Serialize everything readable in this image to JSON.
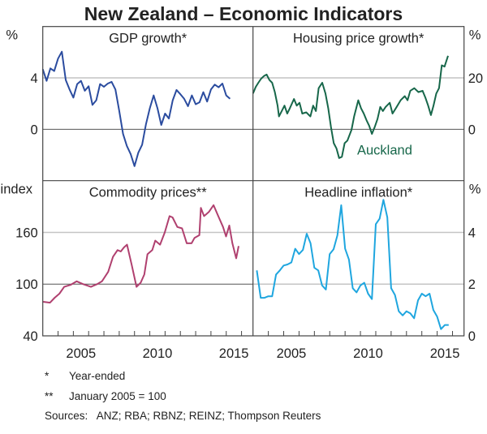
{
  "title": "New Zealand – Economic Indicators",
  "footnotes": [
    {
      "mark": "*",
      "text": "Year-ended"
    },
    {
      "mark": "**",
      "text": "January 2005 = 100"
    }
  ],
  "sources": "Sources:   ANZ; RBA; RBNZ; REINZ; Thompson Reuters",
  "x_ticks": [
    "2005",
    "2010",
    "2015"
  ],
  "chart_data": [
    {
      "type": "line",
      "title": "GDP growth*",
      "unit": "%",
      "unit_side": "left",
      "ylim": [
        -4,
        8
      ],
      "y_ticks": [
        "0",
        "4"
      ],
      "xlim": [
        2003,
        2016.75
      ],
      "grid": true,
      "series": [
        {
          "color": "#2b4c9f",
          "points": [
            [
              2003.0,
              4.68
            ],
            [
              2003.25,
              3.77
            ],
            [
              2003.5,
              4.74
            ],
            [
              2003.75,
              4.53
            ],
            [
              2004.0,
              5.5
            ],
            [
              2004.25,
              6.04
            ],
            [
              2004.5,
              3.84
            ],
            [
              2004.75,
              3.1
            ],
            [
              2005.0,
              2.47
            ],
            [
              2005.25,
              3.52
            ],
            [
              2005.5,
              3.77
            ],
            [
              2005.75,
              3.0
            ],
            [
              2006.0,
              3.35
            ],
            [
              2006.25,
              1.9
            ],
            [
              2006.5,
              2.26
            ],
            [
              2006.75,
              3.52
            ],
            [
              2007.0,
              3.31
            ],
            [
              2007.25,
              3.56
            ],
            [
              2007.5,
              3.69
            ],
            [
              2007.75,
              3.1
            ],
            [
              2008.0,
              1.43
            ],
            [
              2008.25,
              -0.36
            ],
            [
              2008.5,
              -1.3
            ],
            [
              2008.75,
              -1.93
            ],
            [
              2009.0,
              -2.87
            ],
            [
              2009.25,
              -1.82
            ],
            [
              2009.5,
              -1.2
            ],
            [
              2009.75,
              0.38
            ],
            [
              2010.0,
              1.64
            ],
            [
              2010.25,
              2.64
            ],
            [
              2010.5,
              1.64
            ],
            [
              2010.75,
              0.34
            ],
            [
              2011.0,
              1.22
            ],
            [
              2011.25,
              0.84
            ],
            [
              2011.5,
              2.26
            ],
            [
              2011.75,
              3.06
            ],
            [
              2012.0,
              2.73
            ],
            [
              2012.25,
              2.37
            ],
            [
              2012.5,
              1.8
            ],
            [
              2012.75,
              2.64
            ],
            [
              2013.0,
              1.95
            ],
            [
              2013.25,
              2.1
            ],
            [
              2013.5,
              2.89
            ],
            [
              2013.75,
              2.16
            ],
            [
              2014.0,
              3.1
            ],
            [
              2014.25,
              3.48
            ],
            [
              2014.5,
              3.27
            ],
            [
              2014.75,
              3.56
            ],
            [
              2015.0,
              2.64
            ],
            [
              2015.25,
              2.37
            ]
          ]
        }
      ]
    },
    {
      "type": "line",
      "title": "Housing price growth*",
      "unit": "%",
      "unit_side": "right",
      "ylim": [
        -20,
        40
      ],
      "y_ticks": [
        "0",
        "20"
      ],
      "xlim": [
        2003,
        2016.75
      ],
      "grid": true,
      "series": [
        {
          "name": "Auckland",
          "color": "#17674a",
          "points": [
            [
              2003.0,
              13.9
            ],
            [
              2003.18,
              16.5
            ],
            [
              2003.35,
              18.1
            ],
            [
              2003.53,
              19.7
            ],
            [
              2003.71,
              20.7
            ],
            [
              2003.89,
              21.3
            ],
            [
              2004.07,
              19.2
            ],
            [
              2004.25,
              18.1
            ],
            [
              2004.42,
              14.5
            ],
            [
              2004.6,
              9.2
            ],
            [
              2004.69,
              5.0
            ],
            [
              2004.87,
              7.1
            ],
            [
              2005.05,
              9.2
            ],
            [
              2005.23,
              6.1
            ],
            [
              2005.4,
              8.2
            ],
            [
              2005.67,
              11.8
            ],
            [
              2005.85,
              9.2
            ],
            [
              2006.03,
              10.3
            ],
            [
              2006.21,
              6.1
            ],
            [
              2006.47,
              6.6
            ],
            [
              2006.74,
              5.0
            ],
            [
              2006.92,
              9.2
            ],
            [
              2007.1,
              7.1
            ],
            [
              2007.28,
              16.0
            ],
            [
              2007.51,
              18.1
            ],
            [
              2007.72,
              13.9
            ],
            [
              2007.9,
              8.2
            ],
            [
              2008.08,
              0.8
            ],
            [
              2008.26,
              -5.4
            ],
            [
              2008.44,
              -7.5
            ],
            [
              2008.61,
              -11.2
            ],
            [
              2008.79,
              -10.7
            ],
            [
              2008.97,
              -5.4
            ],
            [
              2009.15,
              -4.4
            ],
            [
              2009.42,
              -0.2
            ],
            [
              2009.59,
              5.0
            ],
            [
              2009.86,
              11.3
            ],
            [
              2010.04,
              8.2
            ],
            [
              2010.22,
              6.1
            ],
            [
              2010.4,
              3.5
            ],
            [
              2010.57,
              1.4
            ],
            [
              2010.75,
              -1.8
            ],
            [
              2010.93,
              0.8
            ],
            [
              2011.11,
              4.0
            ],
            [
              2011.29,
              8.7
            ],
            [
              2011.46,
              7.1
            ],
            [
              2011.64,
              8.7
            ],
            [
              2011.91,
              10.3
            ],
            [
              2012.09,
              6.1
            ],
            [
              2012.36,
              8.7
            ],
            [
              2012.62,
              11.3
            ],
            [
              2012.89,
              12.9
            ],
            [
              2013.07,
              11.3
            ],
            [
              2013.25,
              15.0
            ],
            [
              2013.51,
              16.0
            ],
            [
              2013.78,
              14.5
            ],
            [
              2014.05,
              15.0
            ],
            [
              2014.23,
              12.4
            ],
            [
              2014.41,
              9.2
            ],
            [
              2014.59,
              5.5
            ],
            [
              2014.76,
              9.2
            ],
            [
              2014.94,
              13.9
            ],
            [
              2015.12,
              16.0
            ],
            [
              2015.3,
              24.9
            ],
            [
              2015.48,
              24.4
            ],
            [
              2015.71,
              28.6
            ]
          ]
        }
      ]
    },
    {
      "type": "line",
      "title": "Commodity prices**",
      "unit": "index",
      "unit_side": "left",
      "ylim": [
        40,
        220
      ],
      "y_ticks": [
        "40",
        "100",
        "160"
      ],
      "xlim": [
        2003,
        2016.75
      ],
      "grid": true,
      "series": [
        {
          "color": "#b0406f",
          "points": [
            [
              2003.02,
              79.5
            ],
            [
              2003.47,
              78.5
            ],
            [
              2003.78,
              84.2
            ],
            [
              2004.09,
              88.9
            ],
            [
              2004.4,
              96.8
            ],
            [
              2004.81,
              99.1
            ],
            [
              2005.22,
              103.2
            ],
            [
              2005.63,
              100
            ],
            [
              2006.15,
              96.8
            ],
            [
              2006.56,
              100
            ],
            [
              2006.87,
              103.2
            ],
            [
              2007.28,
              114.2
            ],
            [
              2007.59,
              131.6
            ],
            [
              2007.89,
              139.5
            ],
            [
              2008.1,
              137.9
            ],
            [
              2008.31,
              142.6
            ],
            [
              2008.51,
              145.8
            ],
            [
              2008.82,
              122.1
            ],
            [
              2009.13,
              96.8
            ],
            [
              2009.4,
              101.6
            ],
            [
              2009.64,
              111.1
            ],
            [
              2009.85,
              134.7
            ],
            [
              2010.16,
              139.5
            ],
            [
              2010.36,
              150.5
            ],
            [
              2010.67,
              145.8
            ],
            [
              2010.98,
              160
            ],
            [
              2011.29,
              178.9
            ],
            [
              2011.49,
              177.4
            ],
            [
              2011.8,
              166.3
            ],
            [
              2012.11,
              164.7
            ],
            [
              2012.42,
              147.4
            ],
            [
              2012.73,
              147.4
            ],
            [
              2012.93,
              153.7
            ],
            [
              2013.24,
              156.8
            ],
            [
              2013.34,
              188.4
            ],
            [
              2013.55,
              178.9
            ],
            [
              2013.86,
              183.7
            ],
            [
              2014.17,
              191.6
            ],
            [
              2014.48,
              178.9
            ],
            [
              2014.79,
              166.3
            ],
            [
              2014.99,
              155.3
            ],
            [
              2015.2,
              168
            ],
            [
              2015.4,
              147.4
            ],
            [
              2015.65,
              130
            ],
            [
              2015.81,
              144.2
            ]
          ]
        }
      ]
    },
    {
      "type": "line",
      "title": "Headline inflation*",
      "unit": "%",
      "unit_side": "right",
      "ylim": [
        0,
        6
      ],
      "y_ticks": [
        "0",
        "2",
        "4"
      ],
      "xlim": [
        2003,
        2016.75
      ],
      "grid": true,
      "series": [
        {
          "color": "#1fa6df",
          "points": [
            [
              2003.25,
              2.53
            ],
            [
              2003.5,
              1.47
            ],
            [
              2003.75,
              1.47
            ],
            [
              2004.0,
              1.53
            ],
            [
              2004.25,
              1.53
            ],
            [
              2004.5,
              2.37
            ],
            [
              2004.75,
              2.53
            ],
            [
              2005.0,
              2.72
            ],
            [
              2005.25,
              2.76
            ],
            [
              2005.5,
              2.84
            ],
            [
              2005.75,
              3.37
            ],
            [
              2006.0,
              3.16
            ],
            [
              2006.25,
              3.32
            ],
            [
              2006.5,
              3.95
            ],
            [
              2006.75,
              3.58
            ],
            [
              2007.0,
              2.63
            ],
            [
              2007.25,
              2.53
            ],
            [
              2007.5,
              1.95
            ],
            [
              2007.75,
              1.79
            ],
            [
              2008.0,
              3.16
            ],
            [
              2008.25,
              3.35
            ],
            [
              2008.5,
              3.89
            ],
            [
              2008.75,
              5.05
            ],
            [
              2009.0,
              3.37
            ],
            [
              2009.25,
              2.95
            ],
            [
              2009.5,
              1.84
            ],
            [
              2009.75,
              1.68
            ],
            [
              2010.0,
              1.95
            ],
            [
              2010.25,
              2.05
            ],
            [
              2010.5,
              1.63
            ],
            [
              2010.75,
              1.42
            ],
            [
              2011.0,
              4.32
            ],
            [
              2011.25,
              4.53
            ],
            [
              2011.5,
              5.26
            ],
            [
              2011.75,
              4.58
            ],
            [
              2012.0,
              1.84
            ],
            [
              2012.25,
              1.58
            ],
            [
              2012.5,
              0.95
            ],
            [
              2012.75,
              0.79
            ],
            [
              2013.0,
              0.95
            ],
            [
              2013.25,
              0.87
            ],
            [
              2013.5,
              0.68
            ],
            [
              2013.75,
              1.37
            ],
            [
              2014.0,
              1.63
            ],
            [
              2014.25,
              1.53
            ],
            [
              2014.5,
              1.63
            ],
            [
              2014.75,
              1.0
            ],
            [
              2015.0,
              0.74
            ],
            [
              2015.25,
              0.26
            ],
            [
              2015.5,
              0.42
            ],
            [
              2015.75,
              0.42
            ]
          ]
        }
      ]
    }
  ]
}
